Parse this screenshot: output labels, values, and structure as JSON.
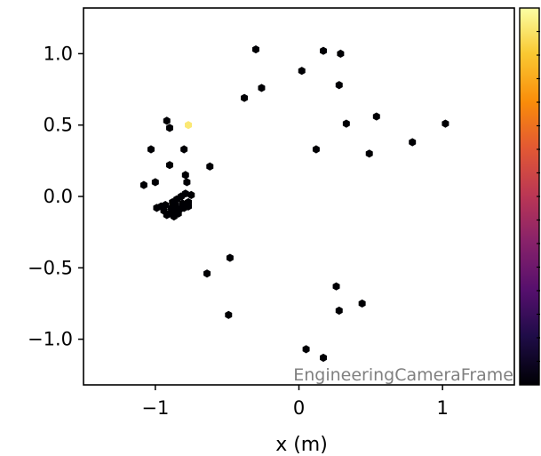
{
  "chart_data": {
    "type": "scatter",
    "xlabel": "x  (m)",
    "ylabel": "",
    "xlim": [
      -1.5,
      1.5
    ],
    "ylim": [
      -1.32,
      1.32
    ],
    "xticks": [
      -1,
      0,
      1
    ],
    "xtick_labels": [
      "−1",
      "0",
      "1"
    ],
    "yticks": [
      -1.0,
      -0.5,
      0.0,
      0.5,
      1.0
    ],
    "ytick_labels": [
      "−1.0",
      "−0.5",
      "0.0",
      "0.5",
      "1.0"
    ],
    "annotation": "EngineeringCameraFrame",
    "colormap": "inferno",
    "colorbar": true,
    "marker": "hexagon",
    "grid": false,
    "points": [
      {
        "x": -0.3,
        "y": 1.03,
        "c": 0.0
      },
      {
        "x": 0.17,
        "y": 1.02,
        "c": 0.0
      },
      {
        "x": 0.29,
        "y": 1.0,
        "c": 0.0
      },
      {
        "x": 0.02,
        "y": 0.88,
        "c": 0.0
      },
      {
        "x": -0.26,
        "y": 0.76,
        "c": 0.0
      },
      {
        "x": 0.28,
        "y": 0.78,
        "c": 0.0
      },
      {
        "x": -0.38,
        "y": 0.69,
        "c": 0.0
      },
      {
        "x": 0.54,
        "y": 0.56,
        "c": 0.0
      },
      {
        "x": 0.33,
        "y": 0.51,
        "c": 0.0
      },
      {
        "x": 1.02,
        "y": 0.51,
        "c": 0.0
      },
      {
        "x": -0.92,
        "y": 0.53,
        "c": 0.0
      },
      {
        "x": -0.9,
        "y": 0.48,
        "c": 0.0
      },
      {
        "x": -0.77,
        "y": 0.5,
        "c": 0.95
      },
      {
        "x": 0.79,
        "y": 0.38,
        "c": 0.0
      },
      {
        "x": -1.03,
        "y": 0.33,
        "c": 0.0
      },
      {
        "x": -0.8,
        "y": 0.33,
        "c": 0.0
      },
      {
        "x": 0.12,
        "y": 0.33,
        "c": 0.0
      },
      {
        "x": 0.49,
        "y": 0.3,
        "c": 0.0
      },
      {
        "x": -0.9,
        "y": 0.22,
        "c": 0.0
      },
      {
        "x": -0.62,
        "y": 0.21,
        "c": 0.0
      },
      {
        "x": -0.79,
        "y": 0.15,
        "c": 0.0
      },
      {
        "x": -0.78,
        "y": 0.1,
        "c": 0.0
      },
      {
        "x": -1.0,
        "y": 0.1,
        "c": 0.0
      },
      {
        "x": -1.08,
        "y": 0.08,
        "c": 0.0
      },
      {
        "x": -0.85,
        "y": -0.02,
        "c": 0.0
      },
      {
        "x": -0.82,
        "y": 0.0,
        "c": 0.0
      },
      {
        "x": -0.79,
        "y": 0.02,
        "c": 0.0
      },
      {
        "x": -0.75,
        "y": 0.01,
        "c": 0.0
      },
      {
        "x": -0.77,
        "y": -0.04,
        "c": 0.0
      },
      {
        "x": -0.81,
        "y": -0.05,
        "c": 0.0
      },
      {
        "x": -0.86,
        "y": -0.06,
        "c": 0.0
      },
      {
        "x": -0.89,
        "y": -0.08,
        "c": 0.0
      },
      {
        "x": -0.93,
        "y": -0.06,
        "c": 0.0
      },
      {
        "x": -0.96,
        "y": -0.07,
        "c": 0.0
      },
      {
        "x": -0.99,
        "y": -0.08,
        "c": 0.0
      },
      {
        "x": -0.94,
        "y": -0.1,
        "c": 0.0
      },
      {
        "x": -0.9,
        "y": -0.12,
        "c": 0.0
      },
      {
        "x": -0.86,
        "y": -0.1,
        "c": 0.0
      },
      {
        "x": -0.83,
        "y": -0.09,
        "c": 0.0
      },
      {
        "x": -0.8,
        "y": -0.08,
        "c": 0.0
      },
      {
        "x": -0.77,
        "y": -0.07,
        "c": 0.0
      },
      {
        "x": -0.92,
        "y": -0.13,
        "c": 0.0
      },
      {
        "x": -0.87,
        "y": -0.14,
        "c": 0.0
      },
      {
        "x": -0.88,
        "y": -0.04,
        "c": 0.0
      },
      {
        "x": -0.84,
        "y": -0.12,
        "c": 0.0
      },
      {
        "x": -0.48,
        "y": -0.43,
        "c": 0.0
      },
      {
        "x": -0.64,
        "y": -0.54,
        "c": 0.0
      },
      {
        "x": 0.26,
        "y": -0.63,
        "c": 0.0
      },
      {
        "x": 0.44,
        "y": -0.75,
        "c": 0.0
      },
      {
        "x": 0.28,
        "y": -0.8,
        "c": 0.0
      },
      {
        "x": -0.49,
        "y": -0.83,
        "c": 0.0
      },
      {
        "x": 0.05,
        "y": -1.07,
        "c": 0.0
      },
      {
        "x": 0.17,
        "y": -1.13,
        "c": 0.0
      }
    ]
  }
}
